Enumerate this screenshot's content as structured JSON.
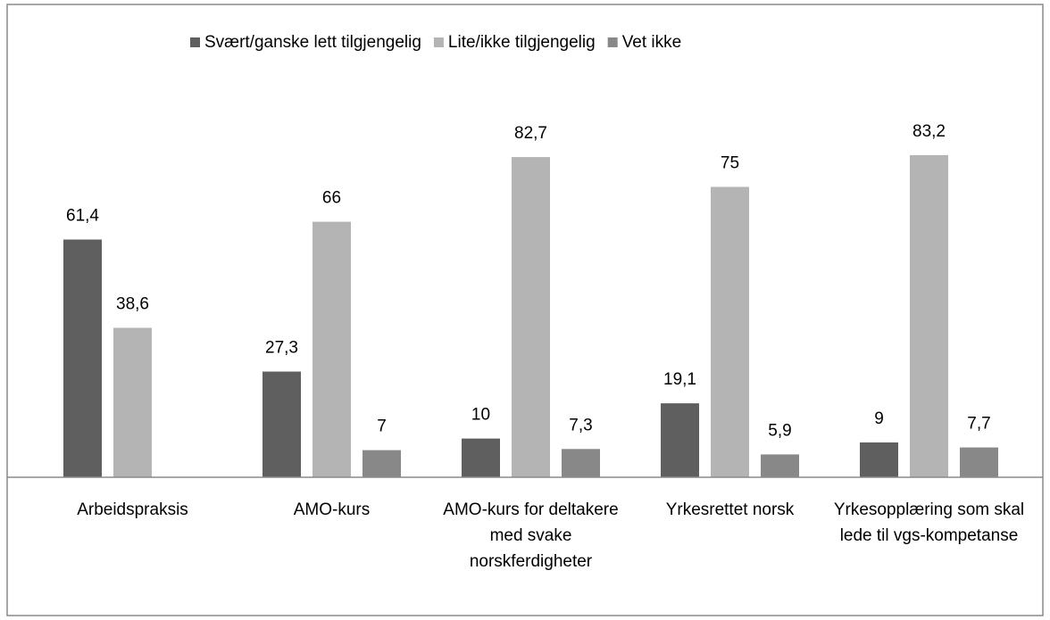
{
  "chart_data": {
    "type": "bar",
    "categories": [
      "Arbeidspraksis",
      "AMO-kurs",
      "AMO-kurs for deltakere med svake norskferdigheter",
      "Yrkesrettet norsk",
      "Yrkesopplæring som skal lede til vgs-kompetanse"
    ],
    "series": [
      {
        "name": "Svært/ganske lett tilgjengelig",
        "color": "#5f5f5f",
        "values": [
          61.4,
          27.3,
          10,
          19.1,
          9
        ],
        "value_labels": [
          "61,4",
          "27,3",
          "10",
          "19,1",
          "9"
        ]
      },
      {
        "name": "Lite/ikke tilgjengelig",
        "color": "#b4b4b4",
        "values": [
          38.6,
          66,
          82.7,
          75,
          83.2
        ],
        "value_labels": [
          "38,6",
          "66",
          "82,7",
          "75",
          "83,2"
        ]
      },
      {
        "name": "Vet ikke",
        "color": "#888888",
        "values": [
          null,
          7,
          7.3,
          5.9,
          7.7
        ],
        "value_labels": [
          null,
          "7",
          "7,3",
          "5,9",
          "7,7"
        ]
      }
    ],
    "ylim": [
      0,
      100
    ],
    "legend": "top"
  }
}
